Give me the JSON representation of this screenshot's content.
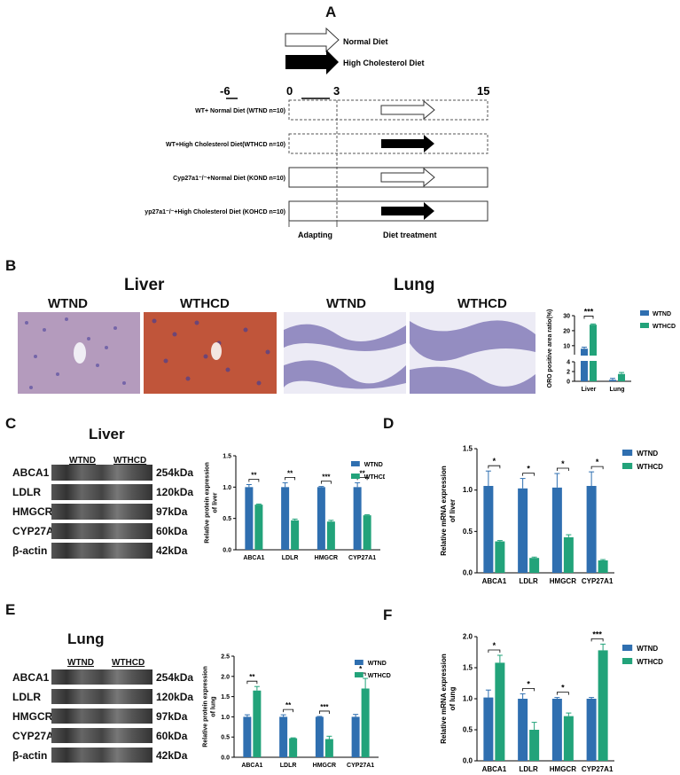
{
  "panels": {
    "A": {
      "letter": "A",
      "legend": [
        "Normal Diet",
        "High Cholesterol  Diet"
      ],
      "timeline": [
        "-6",
        "0",
        "3",
        "15"
      ],
      "groups": [
        "WT+ Normal Diet  (WTND  n=10)",
        "WT+High Cholesterol Diet(WTHCD n=10)",
        "Cyp27a1⁻/⁻+Normal Diet (KOND n=10)",
        "yp27a1⁻/⁻+High Cholesterol Diet (KOHCD n=10)"
      ],
      "phases": [
        "Adapting",
        "Diet treatment"
      ]
    },
    "B": {
      "letter": "B",
      "liver_title": "Liver",
      "lung_title": "Lung",
      "img_labels": [
        "WTND",
        "WTHCD",
        "WTND",
        "WTHCD"
      ]
    },
    "C": {
      "letter": "C",
      "title": "Liver"
    },
    "D": {
      "letter": "D"
    },
    "E": {
      "letter": "E",
      "title": "Lung"
    },
    "F": {
      "letter": "F"
    }
  },
  "blots": {
    "group_labels": [
      "WTND",
      "WTHCD"
    ],
    "proteins": [
      "ABCA1",
      "LDLR",
      "HMGCR",
      "CYP27A1",
      "β-actin"
    ],
    "sizes": [
      "254kDa",
      "120kDa",
      "97kDa",
      "60kDa",
      "42kDa"
    ]
  },
  "colors": {
    "WTND": "#2f6fb0",
    "WTHCD": "#22a37a",
    "img_purple": "#5a4fa0",
    "img_red": "#c0553a"
  },
  "chart_data": [
    {
      "id": "B",
      "type": "bar",
      "ylabel": "ORO positive area ratio(%)",
      "categories": [
        "Liver",
        "Lung"
      ],
      "series": [
        {
          "name": "WTND",
          "values": [
            8,
            0.3
          ]
        },
        {
          "name": "WTHCD",
          "values": [
            24,
            1.5
          ]
        }
      ],
      "errors": [
        [
          1,
          0.3
        ],
        [
          0.5,
          0.3
        ]
      ],
      "yticks": [
        "0",
        "2",
        "4",
        "10",
        "20",
        "30"
      ],
      "axis_break": true,
      "sig": [
        {
          "cat": 0,
          "label": "***"
        }
      ],
      "legend": "top-right"
    },
    {
      "id": "C",
      "type": "bar",
      "ylabel": "Relative protein expression\nof liver",
      "categories": [
        "ABCA1",
        "LDLR",
        "HMGCR",
        "CYP27A1"
      ],
      "series": [
        {
          "name": "WTND",
          "values": [
            1.0,
            1.0,
            1.0,
            1.0
          ]
        },
        {
          "name": "WTHCD",
          "values": [
            0.72,
            0.47,
            0.45,
            0.55
          ]
        }
      ],
      "errors": [
        [
          0.04,
          0.07,
          0.01,
          0.07
        ],
        [
          0.01,
          0.02,
          0.02,
          0.01
        ]
      ],
      "ylim": [
        0,
        1.5
      ],
      "yticks": [
        "0.0",
        "0.5",
        "1.0",
        "1.5"
      ],
      "sig": [
        {
          "cat": 0,
          "label": "**"
        },
        {
          "cat": 1,
          "label": "**"
        },
        {
          "cat": 2,
          "label": "***"
        },
        {
          "cat": 3,
          "label": "**"
        }
      ],
      "legend": "top-right"
    },
    {
      "id": "D",
      "type": "bar",
      "ylabel": "Relative mRNA  expression\nof liver",
      "categories": [
        "ABCA1",
        "LDLR",
        "HMGCR",
        "CYP27A1"
      ],
      "series": [
        {
          "name": "WTND",
          "values": [
            1.05,
            1.02,
            1.03,
            1.05
          ]
        },
        {
          "name": "WTHCD",
          "values": [
            0.38,
            0.18,
            0.43,
            0.15
          ]
        }
      ],
      "errors": [
        [
          0.18,
          0.12,
          0.17,
          0.17
        ],
        [
          0.01,
          0.01,
          0.03,
          0.01
        ]
      ],
      "ylim": [
        0,
        1.5
      ],
      "yticks": [
        "0.0",
        "0.5",
        "1.0",
        "1.5"
      ],
      "sig": [
        {
          "cat": 0,
          "label": "*"
        },
        {
          "cat": 1,
          "label": "*"
        },
        {
          "cat": 2,
          "label": "*"
        },
        {
          "cat": 3,
          "label": "*"
        }
      ],
      "legend": "top-right"
    },
    {
      "id": "E",
      "type": "bar",
      "ylabel": "Relative protein expression\nof lung",
      "categories": [
        "ABCA1",
        "LDLR",
        "HMGCR",
        "CYP27A1"
      ],
      "series": [
        {
          "name": "WTND",
          "values": [
            1.0,
            1.0,
            1.0,
            1.0
          ]
        },
        {
          "name": "WTHCD",
          "values": [
            1.65,
            0.47,
            0.45,
            1.7
          ]
        }
      ],
      "errors": [
        [
          0.05,
          0.05,
          0.01,
          0.06
        ],
        [
          0.1,
          0.01,
          0.07,
          0.25
        ]
      ],
      "ylim": [
        0,
        2.5
      ],
      "yticks": [
        "0.0",
        "0.5",
        "1.0",
        "1.5",
        "2.0",
        "2.5"
      ],
      "sig": [
        {
          "cat": 0,
          "label": "**"
        },
        {
          "cat": 1,
          "label": "**"
        },
        {
          "cat": 2,
          "label": "***"
        },
        {
          "cat": 3,
          "label": "*"
        }
      ],
      "legend": "top-right"
    },
    {
      "id": "F",
      "type": "bar",
      "ylabel": "Relative mRNA  expression\nof lung",
      "categories": [
        "ABCA1",
        "LDLR",
        "HMGCR",
        "CYP27A1"
      ],
      "series": [
        {
          "name": "WTND",
          "values": [
            1.02,
            1.0,
            1.0,
            1.0
          ]
        },
        {
          "name": "WTHCD",
          "values": [
            1.58,
            0.5,
            0.72,
            1.78
          ]
        }
      ],
      "errors": [
        [
          0.12,
          0.08,
          0.02,
          0.02
        ],
        [
          0.12,
          0.12,
          0.05,
          0.1
        ]
      ],
      "ylim": [
        0,
        2.0
      ],
      "yticks": [
        "0.0",
        "0.5",
        "1.0",
        "1.5",
        "2.0"
      ],
      "sig": [
        {
          "cat": 0,
          "label": "*"
        },
        {
          "cat": 1,
          "label": "*"
        },
        {
          "cat": 2,
          "label": "*"
        },
        {
          "cat": 3,
          "label": "***"
        }
      ],
      "legend": "top-right"
    }
  ]
}
